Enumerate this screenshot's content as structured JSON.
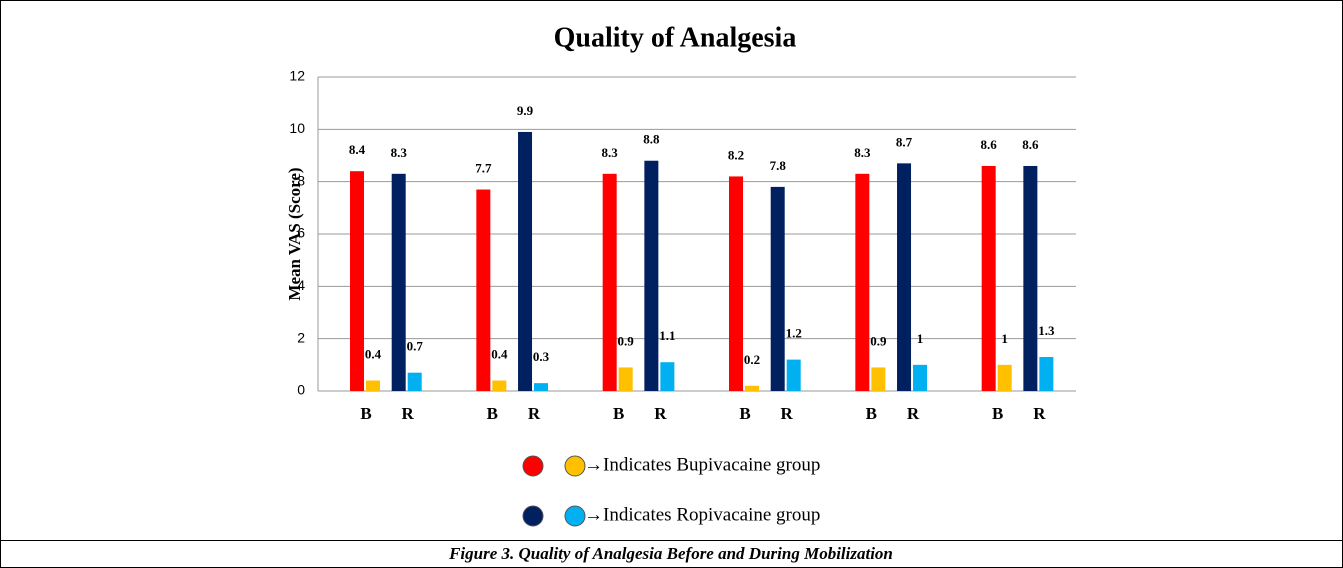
{
  "chart_data": {
    "type": "bar",
    "title": "Quality of Analgesia",
    "y_label": "Mean VAS (Score)",
    "categories": [
      "B",
      "R",
      "B",
      "R",
      "B",
      "R",
      "B",
      "R",
      "B",
      "R",
      "B",
      "R"
    ],
    "series": [
      {
        "colors": [
          "#ff0000",
          "#002060",
          "#ff0000",
          "#002060",
          "#ff0000",
          "#002060",
          "#ff0000",
          "#002060",
          "#ff0000",
          "#002060",
          "#ff0000",
          "#002060"
        ],
        "values": [
          8.4,
          8.3,
          7.7,
          9.9,
          8.3,
          8.8,
          8.2,
          7.8,
          8.3,
          8.7,
          8.6,
          8.6
        ]
      },
      {
        "colors": [
          "#ffc000",
          "#00b0f0",
          "#ffc000",
          "#00b0f0",
          "#ffc000",
          "#00b0f0",
          "#ffc000",
          "#00b0f0",
          "#ffc000",
          "#00b0f0",
          "#ffc000",
          "#00b0f0"
        ],
        "values": [
          0.4,
          0.7,
          0.4,
          0.3,
          0.9,
          1.1,
          0.2,
          1.2,
          0.9,
          1,
          1,
          1.3
        ]
      }
    ],
    "ylim": [
      0,
      12
    ],
    "yticks": [
      0,
      2,
      4,
      6,
      8,
      10,
      12
    ],
    "grid": true,
    "legend": [
      {
        "colors": [
          "#ff0000",
          "#ffc000"
        ],
        "label": "→Indicates Bupivacaine group"
      },
      {
        "colors": [
          "#002060",
          "#00b0f0"
        ],
        "label": "→Indicates Ropivacaine group"
      }
    ],
    "caption": "Figure 3. Quality of Analgesia Before and During Mobilization"
  }
}
